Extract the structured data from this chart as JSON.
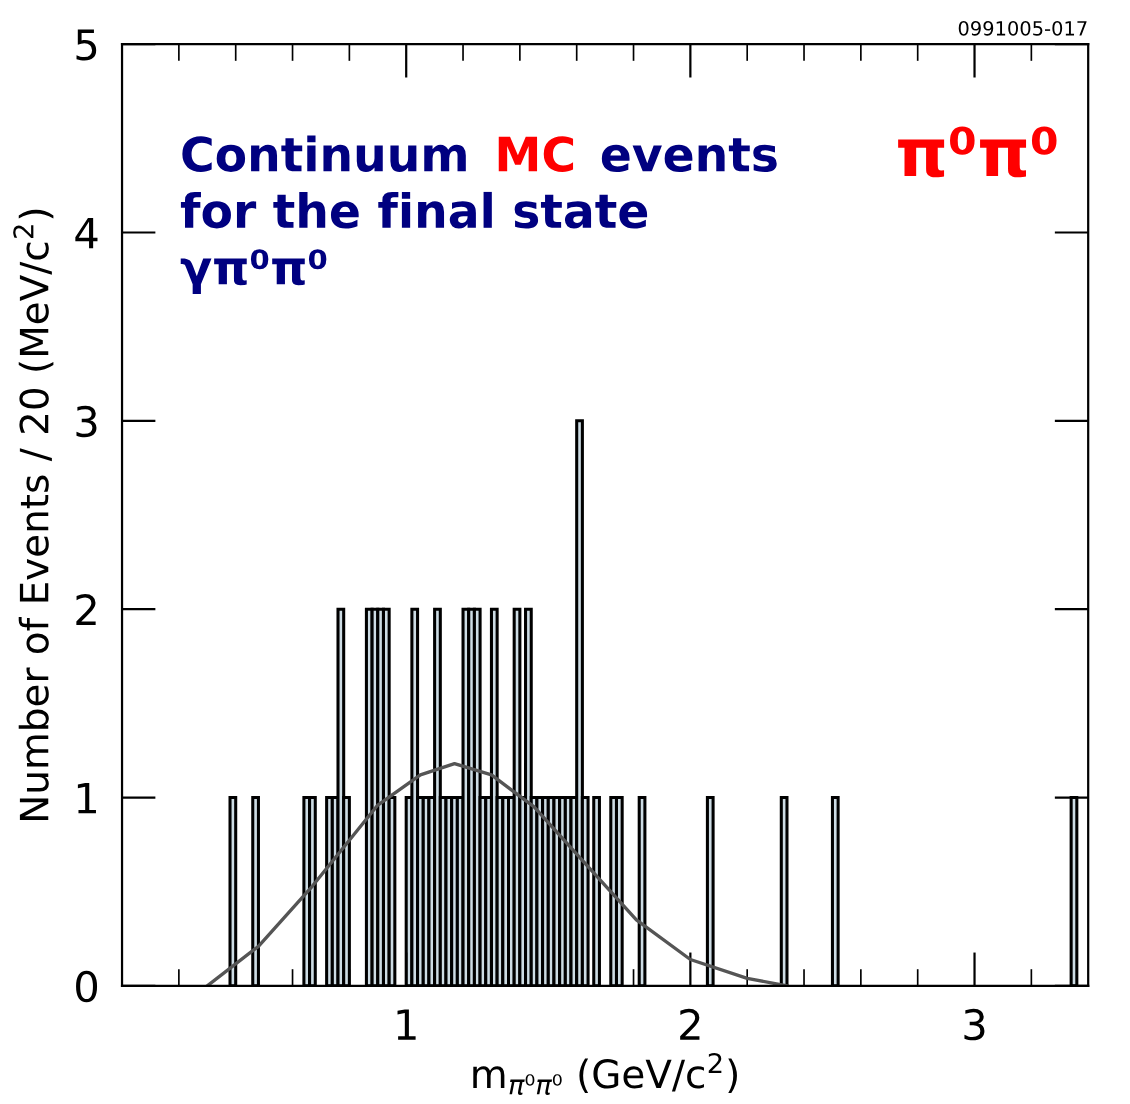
{
  "chart_data": {
    "type": "histogram",
    "xlabel": "m$_{π⁰π⁰}$ (GeV/c$^{2}$)",
    "ylabel": "Number of Events / 20 (MeV/c$^{2}$)",
    "annotations": [
      "Continuum",
      "MC",
      "events",
      "for the final state",
      "γπ⁰π⁰",
      "π⁰π⁰",
      "0991005-017"
    ],
    "bins": [
      0,
      0.02,
      0.04,
      0.06,
      0.08,
      0.1,
      0.12,
      0.14,
      0.16,
      0.18,
      0.2,
      0.22,
      0.24,
      0.26,
      0.28,
      0.3,
      0.32,
      0.34,
      0.36,
      0.38,
      0.4,
      0.42,
      0.44,
      0.46,
      0.48,
      0.5,
      0.52,
      0.54,
      0.56,
      0.58,
      0.6,
      0.62,
      0.64,
      0.66,
      0.68,
      0.7,
      0.72,
      0.74,
      0.76,
      0.78,
      0.8,
      0.82,
      0.84,
      0.86,
      0.88,
      0.9,
      0.92,
      0.94,
      0.96,
      0.98,
      1.0,
      1.02,
      1.04,
      1.06,
      1.08,
      1.1,
      1.12,
      1.14,
      1.16,
      1.18,
      1.2,
      1.22,
      1.24,
      1.26,
      1.28,
      1.3,
      1.32,
      1.34,
      1.36,
      1.38,
      1.4,
      1.42,
      1.44,
      1.46,
      1.48,
      1.5,
      1.52,
      1.54,
      1.56,
      1.58,
      1.6,
      1.62,
      1.64,
      1.66,
      1.68,
      1.7,
      1.72,
      1.74,
      1.76,
      1.78,
      1.8,
      1.82,
      1.84,
      1.86,
      1.88,
      1.9,
      1.92,
      1.94,
      1.96,
      1.98,
      2.0,
      2.02,
      2.04,
      2.06,
      2.08,
      2.1,
      2.12,
      2.14,
      2.16,
      2.18,
      2.2,
      2.22,
      2.24,
      2.26,
      2.28,
      2.3,
      2.32,
      2.34,
      2.36,
      2.38,
      2.4,
      2.42,
      2.44,
      2.46,
      2.48,
      2.5,
      2.52,
      2.54,
      2.56,
      2.58,
      2.6,
      2.62,
      2.64,
      2.66,
      2.68,
      2.7,
      2.72,
      2.74,
      2.76,
      2.78,
      2.8,
      2.82,
      2.84,
      2.86,
      2.88,
      2.9,
      2.92,
      2.94,
      2.96,
      2.98,
      3.0,
      3.02,
      3.04,
      3.06,
      3.08,
      3.1,
      3.12,
      3.14,
      3.16,
      3.18,
      3.2,
      3.22,
      3.24,
      3.26,
      3.28,
      3.3,
      3.32,
      3.34,
      3.36,
      3.38,
      3.4
    ],
    "series": [
      {
        "type": "histogram",
        "color": "#cddce4",
        "values": [
          0,
          0,
          0,
          0,
          0,
          0,
          0,
          0,
          0,
          0,
          0,
          0,
          0,
          0,
          0,
          0,
          0,
          0,
          0,
          1,
          0,
          0,
          0,
          1,
          0,
          0,
          0,
          0,
          0,
          0,
          0,
          0,
          1,
          1,
          0,
          0,
          1,
          1,
          2,
          1,
          0,
          0,
          0,
          2,
          2,
          2,
          2,
          1,
          0,
          0,
          1,
          2,
          1,
          1,
          1,
          2,
          1,
          1,
          1,
          1,
          2,
          2,
          2,
          1,
          1,
          2,
          1,
          1,
          1,
          2,
          1,
          2,
          1,
          1,
          1,
          1,
          1,
          1,
          1,
          1,
          3,
          1,
          0,
          1,
          0,
          0,
          1,
          1,
          0,
          0,
          0,
          1,
          0,
          0,
          0,
          0,
          0,
          0,
          0,
          0,
          0,
          0,
          0,
          1,
          0,
          0,
          0,
          0,
          0,
          0,
          0,
          0,
          0,
          0,
          0,
          0,
          1,
          0,
          0,
          0,
          0,
          0,
          0,
          0,
          0,
          1,
          0,
          0,
          0,
          0,
          0,
          0,
          0,
          0,
          0,
          0,
          0,
          0,
          0,
          0,
          0,
          0,
          0,
          0,
          0,
          0,
          0,
          0,
          0,
          0,
          0,
          0,
          0,
          0,
          0,
          0,
          0,
          0,
          0,
          0,
          0,
          0,
          0,
          0,
          0,
          0,
          0,
          1,
          0,
          0
        ]
      },
      {
        "type": "line",
        "color": "#555555",
        "x": [
          0.3,
          0.48,
          0.67,
          0.9,
          1.05,
          1.17,
          1.3,
          1.45,
          1.6,
          1.81,
          2.0,
          2.2,
          2.34
        ],
        "values": [
          0,
          0.21,
          0.53,
          0.96,
          1.12,
          1.18,
          1.12,
          0.95,
          0.7,
          0.35,
          0.14,
          0.04,
          0
        ]
      }
    ],
    "xlim": [
      0,
      3.4
    ],
    "xticks": [
      {
        "value": 0,
        "label": null
      },
      {
        "value": 0.2,
        "label": null
      },
      {
        "value": 0.4,
        "label": null
      },
      {
        "value": 0.6,
        "label": null
      },
      {
        "value": 0.8,
        "label": null
      },
      1,
      {
        "value": 1.2,
        "label": null
      },
      {
        "value": 1.4,
        "label": null
      },
      {
        "value": 1.6,
        "label": null
      },
      {
        "value": 1.8,
        "label": null
      },
      2,
      {
        "value": 2.2,
        "label": null
      },
      {
        "value": 2.4,
        "label": null
      },
      {
        "value": 2.6,
        "label": null
      },
      {
        "value": 2.8,
        "label": null
      },
      3,
      {
        "value": 3.2,
        "label": null
      }
    ],
    "ylim": [
      0,
      5
    ],
    "yticks": [
      0,
      1,
      2,
      3,
      4,
      5
    ],
    "grid": false,
    "legend": false
  }
}
